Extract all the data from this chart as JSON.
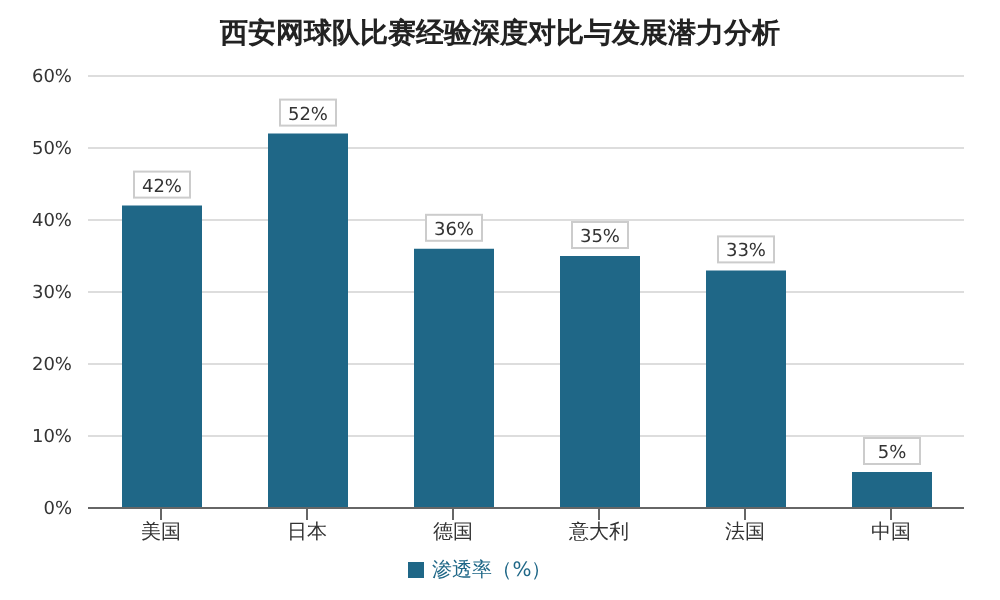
{
  "chart_data": {
    "type": "bar",
    "title": "西安网球队比赛经验深度对比与发展潜力分析",
    "categories": [
      "美国",
      "日本",
      "德国",
      "意大利",
      "法国",
      "中国"
    ],
    "series": [
      {
        "name": "渗透率（%）",
        "color": "#1f6787",
        "values": [
          42,
          52,
          36,
          35,
          33,
          5
        ],
        "value_labels": [
          "42%",
          "52%",
          "36%",
          "35%",
          "33%",
          "5%"
        ]
      }
    ],
    "ylim": [
      0,
      60
    ],
    "yticks": [
      {
        "value": 0,
        "label": "0%"
      },
      {
        "value": 10,
        "label": "10%"
      },
      {
        "value": 20,
        "label": "20%"
      },
      {
        "value": 30,
        "label": "30%"
      },
      {
        "value": 40,
        "label": "40%"
      },
      {
        "value": 50,
        "label": "50%"
      },
      {
        "value": 60,
        "label": "60%"
      }
    ],
    "grid": "y",
    "legend": "bottom"
  }
}
